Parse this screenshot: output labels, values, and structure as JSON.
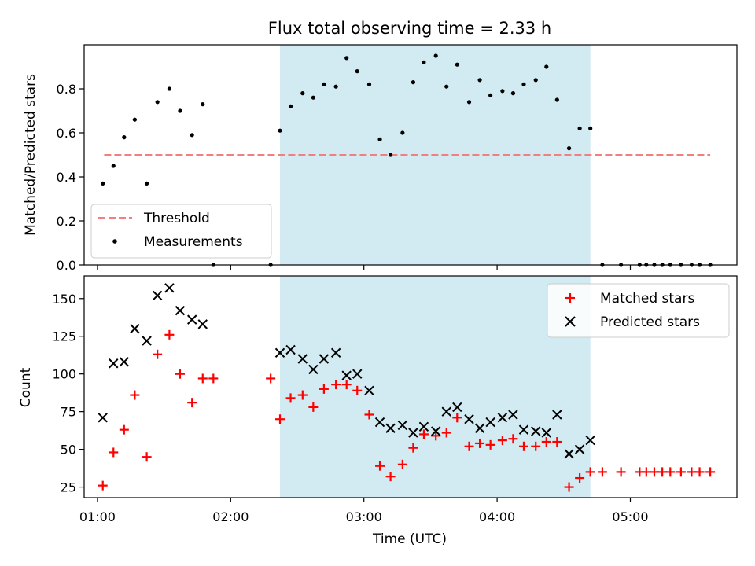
{
  "title": "Flux total observing time = 2.33 h",
  "colors": {
    "span": "#add8e6",
    "threshold": "#f08080",
    "matched": "#ff0000",
    "predicted": "#000000",
    "measurement": "#000000"
  },
  "chart_data": [
    {
      "type": "scatter",
      "ylabel": "Matched/Predicted stars",
      "xlim": [
        0.9,
        5.8
      ],
      "ylim": [
        0,
        1
      ],
      "yticks": [
        0.0,
        0.2,
        0.4,
        0.6,
        0.8
      ],
      "ytick_labels": [
        "0.0",
        "0.2",
        "0.4",
        "0.6",
        "0.8"
      ],
      "shaded_span": [
        2.37,
        4.7
      ],
      "legend_position": "lower-left",
      "threshold": {
        "name": "Threshold",
        "x": [
          1.05,
          5.6
        ],
        "y": 0.5
      },
      "series": [
        {
          "name": "Measurements",
          "points": [
            [
              1.04,
              0.37
            ],
            [
              1.12,
              0.45
            ],
            [
              1.2,
              0.58
            ],
            [
              1.28,
              0.66
            ],
            [
              1.37,
              0.37
            ],
            [
              1.45,
              0.74
            ],
            [
              1.54,
              0.8
            ],
            [
              1.62,
              0.7
            ],
            [
              1.71,
              0.59
            ],
            [
              1.79,
              0.73
            ],
            [
              1.87,
              0.0
            ],
            [
              2.3,
              0.0
            ],
            [
              2.37,
              0.61
            ],
            [
              2.45,
              0.72
            ],
            [
              2.54,
              0.78
            ],
            [
              2.62,
              0.76
            ],
            [
              2.7,
              0.82
            ],
            [
              2.79,
              0.81
            ],
            [
              2.87,
              0.94
            ],
            [
              2.95,
              0.88
            ],
            [
              3.04,
              0.82
            ],
            [
              3.12,
              0.57
            ],
            [
              3.2,
              0.5
            ],
            [
              3.29,
              0.6
            ],
            [
              3.37,
              0.83
            ],
            [
              3.45,
              0.92
            ],
            [
              3.54,
              0.95
            ],
            [
              3.62,
              0.81
            ],
            [
              3.7,
              0.91
            ],
            [
              3.79,
              0.74
            ],
            [
              3.87,
              0.84
            ],
            [
              3.95,
              0.77
            ],
            [
              4.04,
              0.79
            ],
            [
              4.12,
              0.78
            ],
            [
              4.2,
              0.82
            ],
            [
              4.29,
              0.84
            ],
            [
              4.37,
              0.9
            ],
            [
              4.45,
              0.75
            ],
            [
              4.54,
              0.53
            ],
            [
              4.62,
              0.62
            ],
            [
              4.7,
              0.62
            ],
            [
              4.79,
              0.0
            ],
            [
              4.93,
              0.0
            ],
            [
              5.07,
              0.0
            ],
            [
              5.12,
              0.0
            ],
            [
              5.18,
              0.0
            ],
            [
              5.24,
              0.0
            ],
            [
              5.3,
              0.0
            ],
            [
              5.38,
              0.0
            ],
            [
              5.46,
              0.0
            ],
            [
              5.52,
              0.0
            ],
            [
              5.6,
              0.0
            ]
          ]
        }
      ]
    },
    {
      "type": "scatter",
      "ylabel": "Count",
      "xlabel": "Time (UTC)",
      "xlim": [
        0.9,
        5.8
      ],
      "ylim": [
        18,
        165
      ],
      "yticks": [
        25,
        50,
        75,
        100,
        125,
        150
      ],
      "ytick_labels": [
        "25",
        "50",
        "75",
        "100",
        "125",
        "150"
      ],
      "xticks": [
        1,
        2,
        3,
        4,
        5
      ],
      "xtick_labels": [
        "01:00",
        "02:00",
        "03:00",
        "04:00",
        "05:00"
      ],
      "shaded_span": [
        2.37,
        4.7
      ],
      "legend_position": "upper-right",
      "series": [
        {
          "name": "Matched stars",
          "marker": "plus",
          "points": [
            [
              1.04,
              26
            ],
            [
              1.12,
              48
            ],
            [
              1.2,
              63
            ],
            [
              1.28,
              86
            ],
            [
              1.37,
              45
            ],
            [
              1.45,
              113
            ],
            [
              1.54,
              126
            ],
            [
              1.62,
              100
            ],
            [
              1.71,
              81
            ],
            [
              1.79,
              97
            ],
            [
              1.87,
              97
            ],
            [
              2.3,
              97
            ],
            [
              2.37,
              70
            ],
            [
              2.45,
              84
            ],
            [
              2.54,
              86
            ],
            [
              2.62,
              78
            ],
            [
              2.7,
              90
            ],
            [
              2.79,
              93
            ],
            [
              2.87,
              93
            ],
            [
              2.95,
              89
            ],
            [
              3.04,
              73
            ],
            [
              3.12,
              39
            ],
            [
              3.2,
              32
            ],
            [
              3.29,
              40
            ],
            [
              3.37,
              51
            ],
            [
              3.45,
              60
            ],
            [
              3.54,
              59
            ],
            [
              3.62,
              61
            ],
            [
              3.7,
              71
            ],
            [
              3.79,
              52
            ],
            [
              3.87,
              54
            ],
            [
              3.95,
              53
            ],
            [
              4.04,
              56
            ],
            [
              4.12,
              57
            ],
            [
              4.2,
              52
            ],
            [
              4.29,
              52
            ],
            [
              4.37,
              55
            ],
            [
              4.45,
              55
            ],
            [
              4.54,
              25
            ],
            [
              4.62,
              31
            ],
            [
              4.7,
              35
            ],
            [
              4.79,
              35
            ],
            [
              4.93,
              35
            ],
            [
              5.07,
              35
            ],
            [
              5.12,
              35
            ],
            [
              5.18,
              35
            ],
            [
              5.24,
              35
            ],
            [
              5.3,
              35
            ],
            [
              5.38,
              35
            ],
            [
              5.46,
              35
            ],
            [
              5.52,
              35
            ],
            [
              5.6,
              35
            ]
          ]
        },
        {
          "name": "Predicted stars",
          "marker": "x",
          "points": [
            [
              1.04,
              71
            ],
            [
              1.12,
              107
            ],
            [
              1.2,
              108
            ],
            [
              1.28,
              130
            ],
            [
              1.37,
              122
            ],
            [
              1.45,
              152
            ],
            [
              1.54,
              157
            ],
            [
              1.62,
              142
            ],
            [
              1.71,
              136
            ],
            [
              1.79,
              133
            ],
            [
              2.37,
              114
            ],
            [
              2.45,
              116
            ],
            [
              2.54,
              110
            ],
            [
              2.62,
              103
            ],
            [
              2.7,
              110
            ],
            [
              2.79,
              114
            ],
            [
              2.87,
              99
            ],
            [
              2.95,
              100
            ],
            [
              3.04,
              89
            ],
            [
              3.12,
              68
            ],
            [
              3.2,
              64
            ],
            [
              3.29,
              66
            ],
            [
              3.37,
              61
            ],
            [
              3.45,
              65
            ],
            [
              3.54,
              62
            ],
            [
              3.62,
              75
            ],
            [
              3.7,
              78
            ],
            [
              3.79,
              70
            ],
            [
              3.87,
              64
            ],
            [
              3.95,
              68
            ],
            [
              4.04,
              71
            ],
            [
              4.12,
              73
            ],
            [
              4.2,
              63
            ],
            [
              4.29,
              62
            ],
            [
              4.37,
              61
            ],
            [
              4.45,
              73
            ],
            [
              4.54,
              47
            ],
            [
              4.62,
              50
            ],
            [
              4.7,
              56
            ]
          ]
        }
      ]
    }
  ]
}
